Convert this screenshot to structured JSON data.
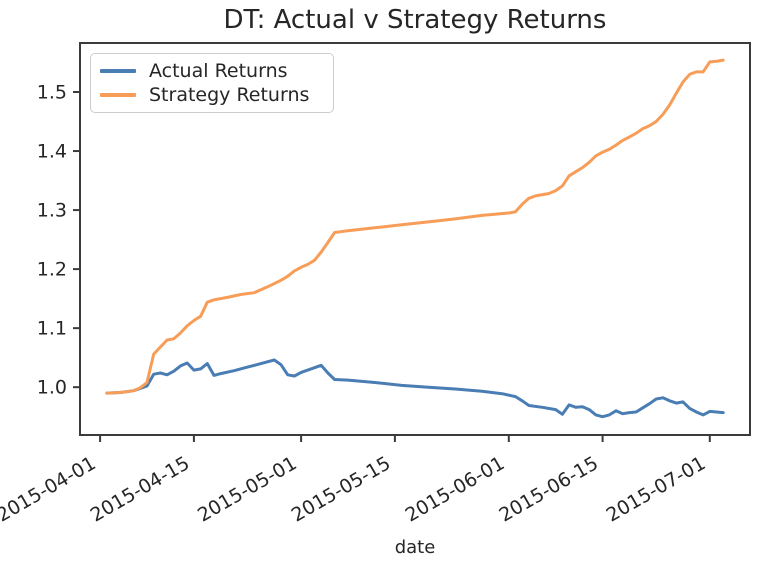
{
  "figure": {
    "title": "DT: Actual v Strategy Returns",
    "xlabel": "date",
    "background": "#ffffff",
    "spine_color": "#3b3b3b",
    "text_color": "#262626"
  },
  "legend": {
    "entries": [
      {
        "label": "Actual Returns",
        "color": "#4a7db4"
      },
      {
        "label": "Strategy Returns",
        "color": "#f79d58"
      }
    ]
  },
  "chart_data": {
    "type": "line",
    "title": "DT: Actual v Strategy Returns",
    "xlabel": "date",
    "ylabel": "",
    "grid": false,
    "legend_position": "upper left",
    "x_tick_rotation": 30,
    "x_ticks": [
      "2015-04-01",
      "2015-04-15",
      "2015-05-01",
      "2015-05-15",
      "2015-06-01",
      "2015-06-15",
      "2015-07-01"
    ],
    "y_ticks": [
      1.0,
      1.1,
      1.2,
      1.3,
      1.4,
      1.5
    ],
    "xlim": [
      "2015-03-29",
      "2015-07-07"
    ],
    "ylim": [
      0.919,
      1.583
    ],
    "series": [
      {
        "name": "Actual Returns",
        "color": "#4a7db4",
        "points": [
          [
            "2015-04-02",
            0.99
          ],
          [
            "2015-04-04",
            0.991
          ],
          [
            "2015-04-06",
            0.994
          ],
          [
            "2015-04-07",
            0.998
          ],
          [
            "2015-04-08",
            1.002
          ],
          [
            "2015-04-09",
            1.022
          ],
          [
            "2015-04-10",
            1.024
          ],
          [
            "2015-04-11",
            1.021
          ],
          [
            "2015-04-12",
            1.027
          ],
          [
            "2015-04-13",
            1.036
          ],
          [
            "2015-04-14",
            1.041
          ],
          [
            "2015-04-15",
            1.029
          ],
          [
            "2015-04-16",
            1.031
          ],
          [
            "2015-04-17",
            1.04
          ],
          [
            "2015-04-18",
            1.02
          ],
          [
            "2015-04-19",
            1.023
          ],
          [
            "2015-04-21",
            1.028
          ],
          [
            "2015-04-23",
            1.034
          ],
          [
            "2015-04-25",
            1.04
          ],
          [
            "2015-04-27",
            1.046
          ],
          [
            "2015-04-28",
            1.038
          ],
          [
            "2015-04-29",
            1.021
          ],
          [
            "2015-04-30",
            1.019
          ],
          [
            "2015-05-01",
            1.025
          ],
          [
            "2015-05-02",
            1.029
          ],
          [
            "2015-05-03",
            1.033
          ],
          [
            "2015-05-04",
            1.037
          ],
          [
            "2015-05-05",
            1.024
          ],
          [
            "2015-05-06",
            1.013
          ],
          [
            "2015-05-08",
            1.012
          ],
          [
            "2015-05-12",
            1.008
          ],
          [
            "2015-05-16",
            1.003
          ],
          [
            "2015-05-20",
            1.0
          ],
          [
            "2015-05-24",
            0.997
          ],
          [
            "2015-05-28",
            0.993
          ],
          [
            "2015-05-31",
            0.989
          ],
          [
            "2015-06-02",
            0.984
          ],
          [
            "2015-06-03",
            0.977
          ],
          [
            "2015-06-04",
            0.969
          ],
          [
            "2015-06-06",
            0.966
          ],
          [
            "2015-06-08",
            0.962
          ],
          [
            "2015-06-09",
            0.954
          ],
          [
            "2015-06-10",
            0.97
          ],
          [
            "2015-06-11",
            0.966
          ],
          [
            "2015-06-12",
            0.967
          ],
          [
            "2015-06-13",
            0.962
          ],
          [
            "2015-06-14",
            0.953
          ],
          [
            "2015-06-15",
            0.95
          ],
          [
            "2015-06-16",
            0.953
          ],
          [
            "2015-06-17",
            0.96
          ],
          [
            "2015-06-18",
            0.955
          ],
          [
            "2015-06-19",
            0.957
          ],
          [
            "2015-06-20",
            0.958
          ],
          [
            "2015-06-21",
            0.965
          ],
          [
            "2015-06-22",
            0.972
          ],
          [
            "2015-06-23",
            0.98
          ],
          [
            "2015-06-24",
            0.982
          ],
          [
            "2015-06-25",
            0.977
          ],
          [
            "2015-06-26",
            0.973
          ],
          [
            "2015-06-27",
            0.975
          ],
          [
            "2015-06-28",
            0.964
          ],
          [
            "2015-06-29",
            0.958
          ],
          [
            "2015-06-30",
            0.953
          ],
          [
            "2015-07-01",
            0.959
          ],
          [
            "2015-07-02",
            0.958
          ],
          [
            "2015-07-03",
            0.957
          ]
        ]
      },
      {
        "name": "Strategy Returns",
        "color": "#f79d58",
        "points": [
          [
            "2015-04-02",
            0.99
          ],
          [
            "2015-04-04",
            0.991
          ],
          [
            "2015-04-06",
            0.994
          ],
          [
            "2015-04-07",
            0.999
          ],
          [
            "2015-04-08",
            1.008
          ],
          [
            "2015-04-09",
            1.056
          ],
          [
            "2015-04-10",
            1.068
          ],
          [
            "2015-04-11",
            1.08
          ],
          [
            "2015-04-12",
            1.082
          ],
          [
            "2015-04-13",
            1.092
          ],
          [
            "2015-04-14",
            1.104
          ],
          [
            "2015-04-15",
            1.113
          ],
          [
            "2015-04-16",
            1.12
          ],
          [
            "2015-04-17",
            1.144
          ],
          [
            "2015-04-18",
            1.148
          ],
          [
            "2015-04-20",
            1.152
          ],
          [
            "2015-04-22",
            1.157
          ],
          [
            "2015-04-24",
            1.16
          ],
          [
            "2015-04-26",
            1.17
          ],
          [
            "2015-04-28",
            1.181
          ],
          [
            "2015-04-29",
            1.188
          ],
          [
            "2015-04-30",
            1.197
          ],
          [
            "2015-05-01",
            1.203
          ],
          [
            "2015-05-02",
            1.208
          ],
          [
            "2015-05-03",
            1.215
          ],
          [
            "2015-05-04",
            1.229
          ],
          [
            "2015-05-05",
            1.245
          ],
          [
            "2015-05-06",
            1.262
          ],
          [
            "2015-05-08",
            1.265
          ],
          [
            "2015-05-12",
            1.27
          ],
          [
            "2015-05-16",
            1.275
          ],
          [
            "2015-05-20",
            1.28
          ],
          [
            "2015-05-24",
            1.285
          ],
          [
            "2015-05-28",
            1.291
          ],
          [
            "2015-06-01",
            1.295
          ],
          [
            "2015-06-02",
            1.297
          ],
          [
            "2015-06-03",
            1.31
          ],
          [
            "2015-06-04",
            1.32
          ],
          [
            "2015-06-05",
            1.324
          ],
          [
            "2015-06-07",
            1.328
          ],
          [
            "2015-06-08",
            1.333
          ],
          [
            "2015-06-09",
            1.341
          ],
          [
            "2015-06-10",
            1.358
          ],
          [
            "2015-06-11",
            1.365
          ],
          [
            "2015-06-12",
            1.372
          ],
          [
            "2015-06-13",
            1.381
          ],
          [
            "2015-06-14",
            1.392
          ],
          [
            "2015-06-15",
            1.398
          ],
          [
            "2015-06-16",
            1.403
          ],
          [
            "2015-06-17",
            1.41
          ],
          [
            "2015-06-18",
            1.418
          ],
          [
            "2015-06-19",
            1.424
          ],
          [
            "2015-06-20",
            1.43
          ],
          [
            "2015-06-21",
            1.438
          ],
          [
            "2015-06-22",
            1.443
          ],
          [
            "2015-06-23",
            1.45
          ],
          [
            "2015-06-24",
            1.462
          ],
          [
            "2015-06-25",
            1.478
          ],
          [
            "2015-06-26",
            1.498
          ],
          [
            "2015-06-27",
            1.517
          ],
          [
            "2015-06-28",
            1.53
          ],
          [
            "2015-06-29",
            1.534
          ],
          [
            "2015-06-30",
            1.534
          ],
          [
            "2015-07-01",
            1.551
          ],
          [
            "2015-07-02",
            1.552
          ],
          [
            "2015-07-03",
            1.554
          ]
        ]
      }
    ]
  }
}
